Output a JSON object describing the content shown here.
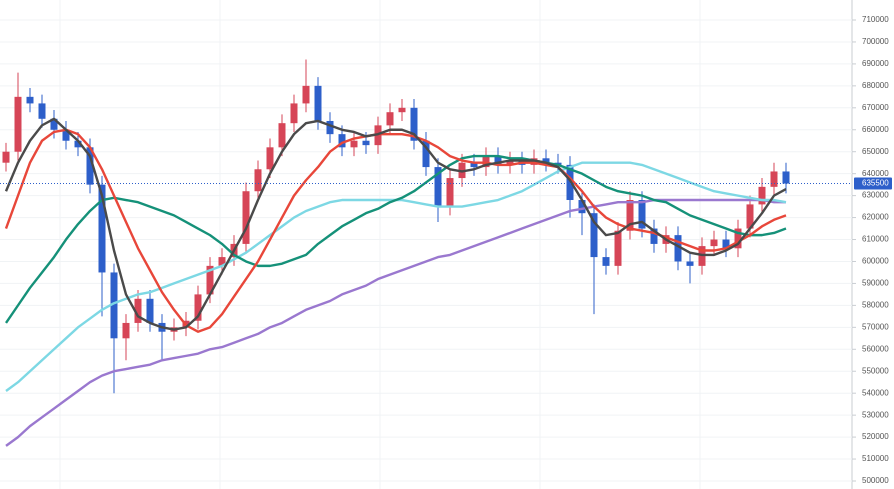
{
  "chart_data": {
    "type": "candlestick",
    "up_color": "#d64557",
    "down_color": "#2d5fca",
    "ylim": [
      500000,
      710000
    ],
    "yticks": [
      500000,
      510000,
      520000,
      530000,
      540000,
      550000,
      560000,
      570000,
      580000,
      590000,
      600000,
      610000,
      620000,
      630000,
      640000,
      650000,
      660000,
      670000,
      680000,
      690000,
      700000,
      710000
    ],
    "grid": true,
    "last_price": 635500,
    "open": [
      645000,
      650000,
      675000,
      672000,
      665000,
      660000,
      655000,
      652000,
      635000,
      595000,
      565000,
      572000,
      583000,
      572000,
      568000,
      570000,
      573000,
      585000,
      598000,
      602000,
      608000,
      632000,
      642000,
      652000,
      663000,
      672000,
      680000,
      664000,
      658000,
      652000,
      655000,
      653000,
      662000,
      668000,
      670000,
      655000,
      643000,
      625000,
      638000,
      645000,
      643000,
      648000,
      644000,
      646000,
      644000,
      647000,
      645000,
      644000,
      628000,
      622000,
      602000,
      598000,
      614000,
      628000,
      615000,
      608000,
      612000,
      600000,
      598000,
      607000,
      610000,
      606000,
      615000,
      626000,
      634000,
      641000
    ],
    "high": [
      654000,
      686000,
      679000,
      676000,
      669000,
      664000,
      659000,
      656000,
      639000,
      599000,
      576000,
      587000,
      587000,
      576000,
      574000,
      577000,
      589000,
      602000,
      606000,
      612000,
      636000,
      646000,
      656000,
      667000,
      676000,
      692000,
      684000,
      668000,
      662000,
      659000,
      659000,
      666000,
      672000,
      674000,
      674000,
      659000,
      647000,
      642000,
      649000,
      649000,
      652000,
      652000,
      650000,
      650000,
      651000,
      651000,
      649000,
      648000,
      632000,
      626000,
      606000,
      618000,
      632000,
      632000,
      619000,
      616000,
      616000,
      604000,
      611000,
      614000,
      614000,
      619000,
      630000,
      638000,
      645000,
      645000
    ],
    "low": [
      641000,
      646000,
      668000,
      661000,
      656000,
      651000,
      648000,
      631000,
      575000,
      540000,
      555000,
      568000,
      568000,
      555000,
      564000,
      566000,
      569000,
      581000,
      594000,
      598000,
      604000,
      628000,
      638000,
      648000,
      659000,
      668000,
      660000,
      654000,
      648000,
      648000,
      649000,
      649000,
      658000,
      664000,
      651000,
      639000,
      618000,
      621000,
      634000,
      639000,
      639000,
      640000,
      640000,
      640000,
      640000,
      641000,
      640000,
      620000,
      612000,
      576000,
      594000,
      594000,
      610000,
      611000,
      604000,
      604000,
      596000,
      590000,
      594000,
      603000,
      602000,
      602000,
      611000,
      622000,
      630000,
      631000
    ],
    "close": [
      650000,
      675000,
      672000,
      665000,
      660000,
      655000,
      652000,
      635000,
      595000,
      565000,
      572000,
      583000,
      572000,
      568000,
      570000,
      573000,
      585000,
      598000,
      602000,
      608000,
      632000,
      642000,
      652000,
      663000,
      672000,
      680000,
      664000,
      658000,
      652000,
      655000,
      653000,
      662000,
      668000,
      670000,
      655000,
      643000,
      625000,
      638000,
      645000,
      643000,
      648000,
      644000,
      646000,
      644000,
      647000,
      645000,
      644000,
      628000,
      622000,
      602000,
      598000,
      614000,
      628000,
      615000,
      608000,
      612000,
      600000,
      598000,
      607000,
      610000,
      606000,
      615000,
      626000,
      634000,
      641000,
      635500
    ],
    "series": [
      {
        "color": "#9a78cf",
        "values": [
          516000,
          520000,
          525000,
          529000,
          533000,
          537000,
          541000,
          545000,
          548000,
          550000,
          551000,
          552000,
          553000,
          555000,
          556000,
          557000,
          558000,
          560000,
          561000,
          563000,
          565000,
          567000,
          570000,
          572000,
          575000,
          578000,
          580000,
          582000,
          585000,
          587000,
          589000,
          592000,
          594000,
          596000,
          598000,
          600000,
          602000,
          603000,
          605000,
          607000,
          609000,
          611000,
          613000,
          615000,
          617000,
          619000,
          621000,
          623000,
          624000,
          625000,
          626000,
          627000,
          627000,
          627000,
          628000,
          628000,
          628000,
          628000,
          628000,
          628000,
          628000,
          628000,
          628000,
          628000,
          627000,
          627000
        ]
      },
      {
        "color": "#7dd8e4",
        "values": [
          541000,
          545000,
          550000,
          555000,
          560000,
          565000,
          570000,
          574000,
          578000,
          581000,
          583000,
          585000,
          586000,
          588000,
          590000,
          592000,
          594000,
          596000,
          598000,
          601000,
          604000,
          608000,
          612000,
          616000,
          620000,
          623000,
          625000,
          627000,
          628000,
          628000,
          628000,
          628000,
          628000,
          628000,
          627000,
          626000,
          625000,
          625000,
          625000,
          626000,
          627000,
          628000,
          630000,
          632000,
          635000,
          638000,
          641000,
          643000,
          645000,
          645000,
          645000,
          645000,
          645000,
          644000,
          642000,
          640000,
          638000,
          636000,
          634000,
          632000,
          631000,
          630000,
          629000,
          628000,
          628000,
          627000
        ]
      },
      {
        "color": "#159179",
        "values": [
          572000,
          580000,
          588000,
          595000,
          602000,
          610000,
          617000,
          623000,
          628000,
          629000,
          628000,
          627000,
          625000,
          623000,
          621000,
          618000,
          615000,
          612000,
          608000,
          603000,
          600000,
          598000,
          598000,
          599000,
          601000,
          603000,
          608000,
          612000,
          616000,
          619000,
          622000,
          624000,
          627000,
          629000,
          632000,
          636000,
          640000,
          644000,
          647000,
          648000,
          648000,
          648000,
          647000,
          647000,
          646000,
          645000,
          644000,
          642000,
          640000,
          637000,
          634000,
          632000,
          631000,
          630000,
          628000,
          627000,
          624000,
          621000,
          619000,
          617000,
          615000,
          613000,
          612000,
          612000,
          613000,
          615000
        ]
      },
      {
        "color": "#e8473a",
        "values": [
          615000,
          630000,
          645000,
          655000,
          659000,
          660000,
          658000,
          652000,
          642000,
          630000,
          618000,
          606000,
          596000,
          586000,
          578000,
          571000,
          568000,
          570000,
          576000,
          584000,
          592000,
          600000,
          610000,
          620000,
          630000,
          637000,
          643000,
          650000,
          654000,
          656000,
          657000,
          658000,
          658000,
          658000,
          657000,
          655000,
          652000,
          648000,
          646000,
          645000,
          645000,
          644000,
          644000,
          645000,
          645000,
          644000,
          643000,
          638000,
          632000,
          625000,
          620000,
          617000,
          615000,
          614000,
          613000,
          611000,
          609000,
          607000,
          605000,
          605000,
          606000,
          609000,
          612000,
          616000,
          619000,
          621000
        ]
      },
      {
        "color": "#4a4a4a",
        "values": [
          632000,
          645000,
          655000,
          662000,
          665000,
          660000,
          655000,
          648000,
          630000,
          605000,
          585000,
          575000,
          572000,
          570000,
          569000,
          570000,
          575000,
          585000,
          595000,
          605000,
          615000,
          628000,
          640000,
          650000,
          658000,
          663000,
          664000,
          662000,
          660000,
          659000,
          657000,
          658000,
          660000,
          660000,
          658000,
          652000,
          645000,
          642000,
          641000,
          642000,
          644000,
          645000,
          646000,
          646000,
          646000,
          645000,
          643000,
          637000,
          628000,
          618000,
          612000,
          613000,
          617000,
          618000,
          614000,
          610000,
          607000,
          604000,
          603000,
          603000,
          605000,
          608000,
          615000,
          622000,
          630000,
          633000
        ]
      }
    ]
  }
}
